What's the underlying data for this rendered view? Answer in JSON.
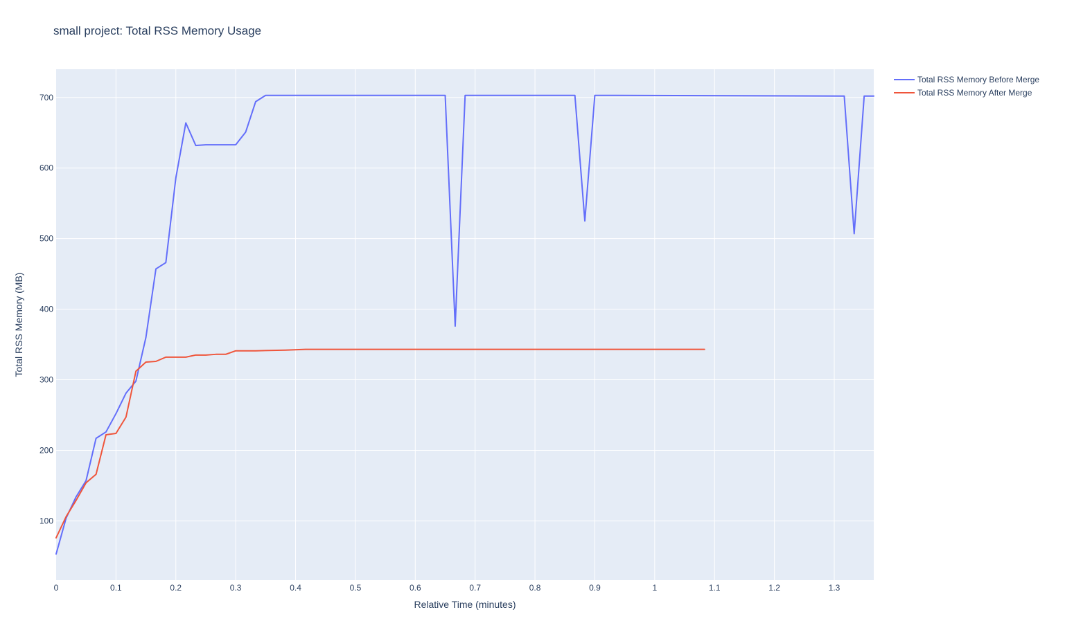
{
  "chart_data": {
    "type": "line",
    "title": "small project: Total RSS Memory Usage",
    "xlabel": "Relative Time (minutes)",
    "ylabel": "Total RSS Memory (MB)",
    "xlim": [
      0,
      1.366
    ],
    "ylim": [
      16,
      740
    ],
    "x_ticks": [
      0,
      0.1,
      0.2,
      0.3,
      0.4,
      0.5,
      0.6,
      0.7,
      0.8,
      0.9,
      1,
      1.1,
      1.2,
      1.3
    ],
    "x_tick_labels": [
      "0",
      "0.1",
      "0.2",
      "0.3",
      "0.4",
      "0.5",
      "0.6",
      "0.7",
      "0.8",
      "0.9",
      "1",
      "1.1",
      "1.2",
      "1.3"
    ],
    "y_ticks": [
      100,
      200,
      300,
      400,
      500,
      600,
      700
    ],
    "y_tick_labels": [
      "100",
      "200",
      "300",
      "400",
      "500",
      "600",
      "700"
    ],
    "grid": true,
    "legend_position": "top-right, outside plot area",
    "plot_background": "#E5ECF6",
    "grid_color": "#FFFFFF",
    "series": [
      {
        "name": "Total RSS Memory Before Merge",
        "color": "#636EFA",
        "x": [
          0,
          0.0167,
          0.0333,
          0.05,
          0.0667,
          0.0833,
          0.1,
          0.1167,
          0.1333,
          0.15,
          0.1667,
          0.1833,
          0.2,
          0.2167,
          0.2333,
          0.25,
          0.2667,
          0.2833,
          0.3,
          0.3167,
          0.3333,
          0.35,
          0.3667,
          0.65,
          0.6667,
          0.6833,
          0.7,
          0.8667,
          0.8833,
          0.9,
          0.9167,
          1.3167,
          1.3333,
          1.35,
          1.366
        ],
        "y": [
          53,
          104,
          134,
          157,
          217,
          226,
          252,
          281,
          298,
          360,
          457,
          466,
          586,
          664,
          632,
          633,
          633,
          633,
          633,
          651,
          694,
          703,
          703,
          703,
          376,
          703,
          703,
          703,
          525,
          703,
          703,
          702,
          507,
          702,
          702
        ]
      },
      {
        "name": "Total RSS Memory After Merge",
        "color": "#EF553B",
        "x": [
          0,
          0.0167,
          0.0333,
          0.05,
          0.0667,
          0.0833,
          0.1,
          0.1167,
          0.1333,
          0.15,
          0.1667,
          0.1833,
          0.2,
          0.2167,
          0.2333,
          0.25,
          0.2667,
          0.2833,
          0.3,
          0.3333,
          0.3833,
          0.4167,
          0.45,
          1.0833
        ],
        "y": [
          76,
          106,
          129,
          154,
          166,
          222,
          224,
          247,
          312,
          325,
          326,
          332,
          332,
          332,
          335,
          335,
          336,
          336,
          341,
          341,
          342,
          343,
          343,
          343
        ]
      }
    ]
  }
}
